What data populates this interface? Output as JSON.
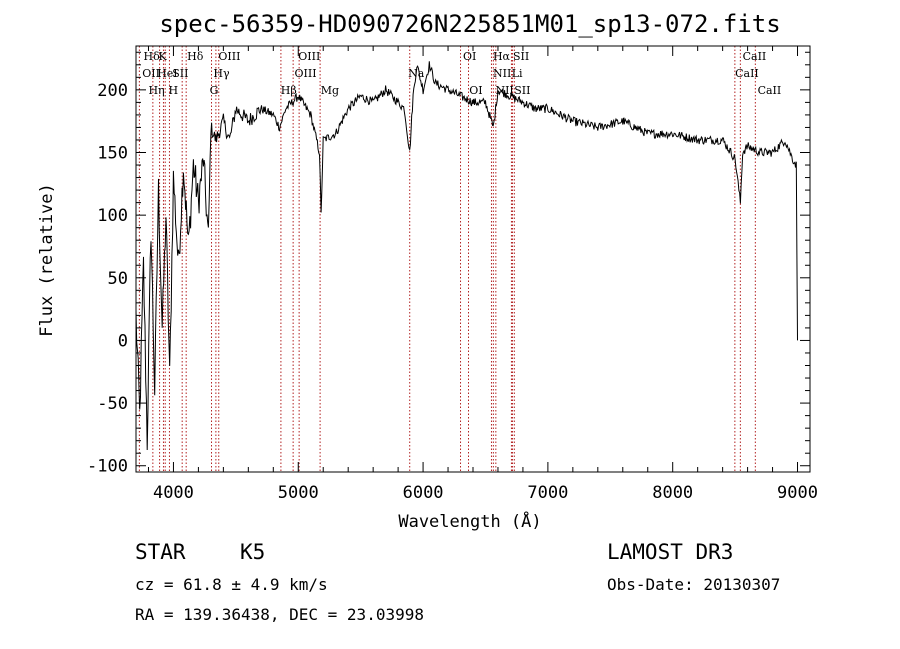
{
  "chart_data": {
    "type": "line",
    "title": "spec-56359-HD090726N225851M01_sp13-072.fits",
    "xlabel": "Wavelength (Å)",
    "ylabel": "Flux (relative)",
    "xlim": [
      3700,
      9100
    ],
    "ylim": [
      -105,
      235
    ],
    "x_ticks": [
      4000,
      5000,
      6000,
      7000,
      8000,
      9000
    ],
    "x_tick_labels": [
      "4000",
      "5000",
      "6000",
      "7000",
      "8000",
      "9000"
    ],
    "y_ticks": [
      -100,
      -50,
      0,
      50,
      100,
      150,
      200
    ],
    "y_tick_labels": [
      "-100",
      "-50",
      "0",
      "50",
      "100",
      "150",
      "200"
    ],
    "series": [
      {
        "name": "spectrum",
        "x": [
          3700,
          3730,
          3760,
          3790,
          3820,
          3850,
          3880,
          3910,
          3940,
          3970,
          4000,
          4040,
          4080,
          4120,
          4160,
          4200,
          4240,
          4280,
          4300,
          4340,
          4400,
          4450,
          4500,
          4600,
          4700,
          4800,
          4850,
          4900,
          5000,
          5100,
          5170,
          5183,
          5200,
          5300,
          5400,
          5500,
          5600,
          5700,
          5800,
          5850,
          5893,
          5920,
          5950,
          6000,
          6050,
          6100,
          6200,
          6300,
          6400,
          6500,
          6563,
          6600,
          6700,
          6800,
          6900,
          7000,
          7100,
          7200,
          7400,
          7600,
          7800,
          8000,
          8200,
          8400,
          8500,
          8542,
          8560,
          8600,
          8700,
          8800,
          8900,
          8960,
          8990,
          9000
        ],
        "y": [
          20,
          -60,
          60,
          -80,
          90,
          -40,
          120,
          10,
          100,
          -30,
          130,
          60,
          140,
          75,
          140,
          110,
          145,
          80,
          170,
          160,
          175,
          160,
          185,
          175,
          185,
          180,
          170,
          185,
          195,
          180,
          150,
          100,
          160,
          165,
          185,
          195,
          190,
          200,
          190,
          185,
          150,
          195,
          220,
          200,
          220,
          205,
          200,
          195,
          190,
          190,
          170,
          200,
          195,
          190,
          185,
          185,
          180,
          175,
          170,
          175,
          165,
          165,
          160,
          160,
          145,
          110,
          150,
          155,
          150,
          150,
          160,
          145,
          140,
          0
        ]
      }
    ],
    "lines": [
      {
        "name": "Hη",
        "x": 3835
      },
      {
        "name": "OII",
        "x": 3727
      },
      {
        "name": "Hζ",
        "x": 3889
      },
      {
        "name": "K",
        "x": 3934
      },
      {
        "name": "HeI",
        "x": 3920
      },
      {
        "name": "H",
        "x": 3968
      },
      {
        "name": "SII",
        "x": 4070
      },
      {
        "name": "Hδ",
        "x": 4102
      },
      {
        "name": "G",
        "x": 4305
      },
      {
        "name": "Hγ",
        "x": 4340
      },
      {
        "name": "OIII",
        "x": 4363
      },
      {
        "name": "Hβ",
        "x": 4861
      },
      {
        "name": "OIII",
        "x": 4959
      },
      {
        "name": "OIII",
        "x": 5007
      },
      {
        "name": "Mg",
        "x": 5175
      },
      {
        "name": "Na",
        "x": 5893
      },
      {
        "name": "OI",
        "x": 6300
      },
      {
        "name": "OI",
        "x": 6364
      },
      {
        "name": "NII",
        "x": 6548
      },
      {
        "name": "Hα",
        "x": 6563
      },
      {
        "name": "NII",
        "x": 6583
      },
      {
        "name": "Li",
        "x": 6708
      },
      {
        "name": "SII",
        "x": 6716
      },
      {
        "name": "SII",
        "x": 6731
      },
      {
        "name": "CaII",
        "x": 8498
      },
      {
        "name": "CaII",
        "x": 8542
      },
      {
        "name": "CaII",
        "x": 8662
      }
    ],
    "line_labels": [
      {
        "text": "Hδ",
        "x": 3760,
        "row": 1
      },
      {
        "text": "K",
        "x": 3880,
        "row": 1
      },
      {
        "text": "Hδ",
        "x": 4110,
        "row": 1
      },
      {
        "text": "OIII",
        "x": 4360,
        "row": 1
      },
      {
        "text": "OIII",
        "x": 5000,
        "row": 1
      },
      {
        "text": "OI",
        "x": 6320,
        "row": 1
      },
      {
        "text": "Hα",
        "x": 6560,
        "row": 1
      },
      {
        "text": "SII",
        "x": 6720,
        "row": 1
      },
      {
        "text": "CaII",
        "x": 8560,
        "row": 1
      },
      {
        "text": "OII",
        "x": 3750,
        "row": 2
      },
      {
        "text": "HeI",
        "x": 3870,
        "row": 2
      },
      {
        "text": "SII",
        "x": 3990,
        "row": 2
      },
      {
        "text": "Hγ",
        "x": 4320,
        "row": 2
      },
      {
        "text": "OIII",
        "x": 4970,
        "row": 2
      },
      {
        "text": "Na",
        "x": 5880,
        "row": 2
      },
      {
        "text": "NII",
        "x": 6560,
        "row": 2
      },
      {
        "text": "Li",
        "x": 6710,
        "row": 2
      },
      {
        "text": "CaII",
        "x": 8500,
        "row": 2
      },
      {
        "text": "Hη",
        "x": 3800,
        "row": 3
      },
      {
        "text": "H",
        "x": 3960,
        "row": 3
      },
      {
        "text": "G",
        "x": 4290,
        "row": 3
      },
      {
        "text": "Hβ",
        "x": 4860,
        "row": 3
      },
      {
        "text": "Mg",
        "x": 5180,
        "row": 3
      },
      {
        "text": "OI",
        "x": 6370,
        "row": 3
      },
      {
        "text": "NII",
        "x": 6580,
        "row": 3
      },
      {
        "text": "SII",
        "x": 6730,
        "row": 3
      },
      {
        "text": "CaII",
        "x": 8680,
        "row": 3
      }
    ]
  },
  "info": {
    "object_type": "STAR",
    "subclass": "K5",
    "survey": "LAMOST DR3",
    "cz": "cz = 61.8 ± 4.9 km/s",
    "obs_date": "Obs-Date: 20130307",
    "coords": "RA = 139.36438, DEC =  23.03998"
  },
  "colors": {
    "spectrum": "#000000",
    "line_markers": "#b22222",
    "axis": "#000000"
  }
}
